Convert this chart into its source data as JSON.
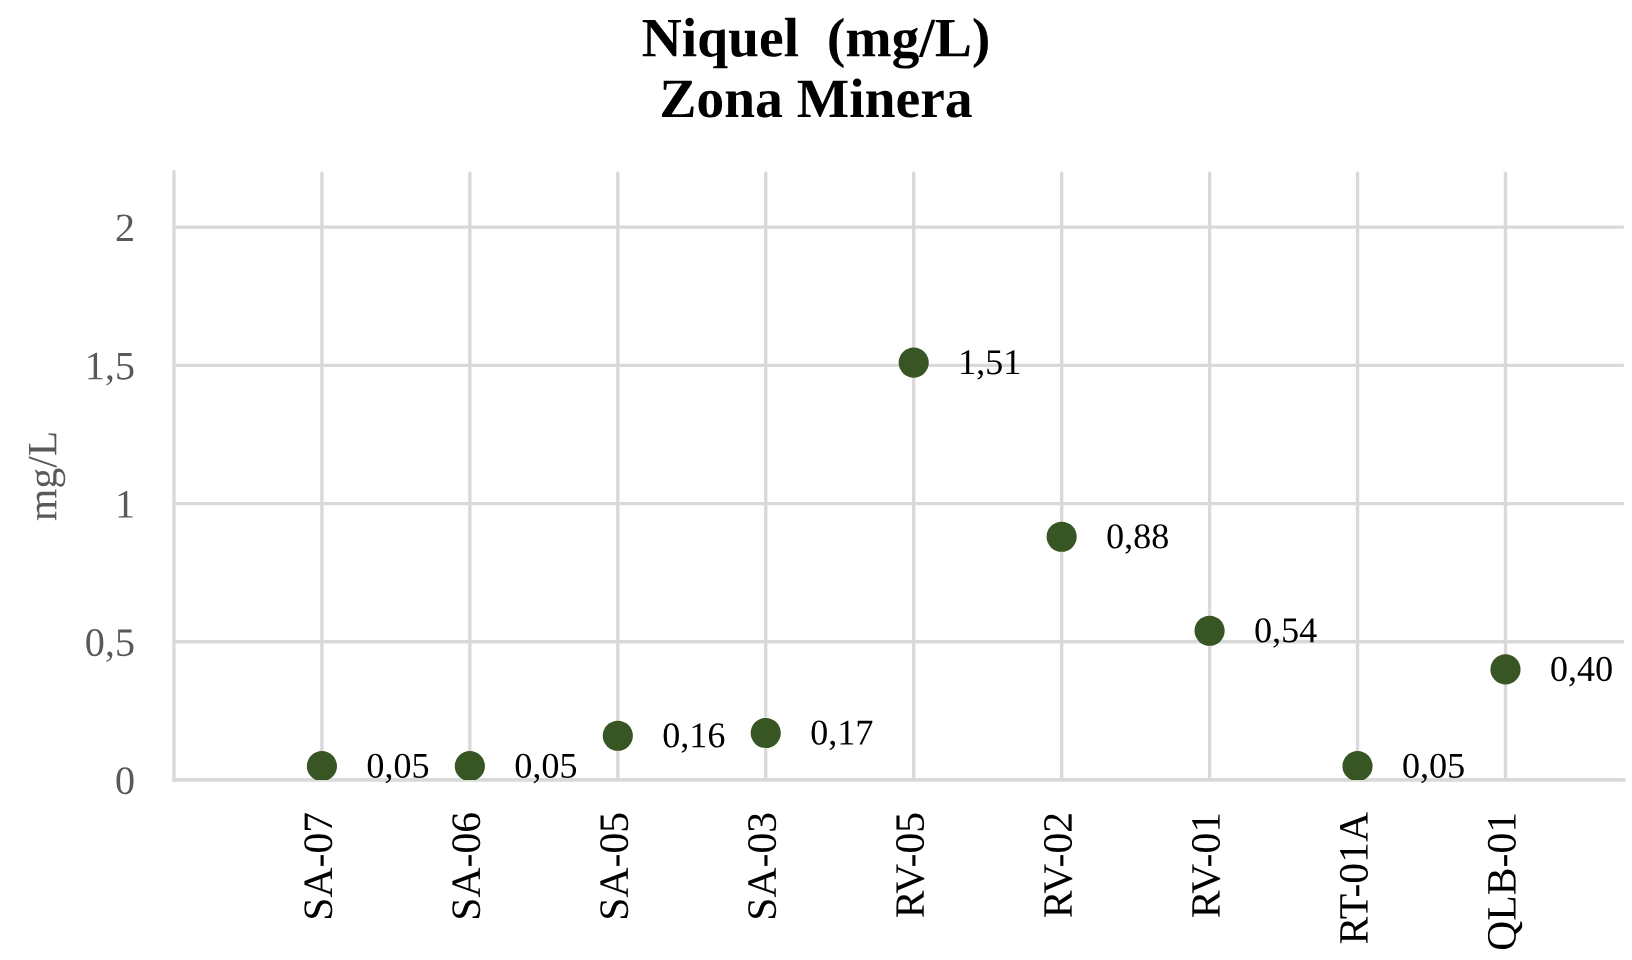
{
  "chart_data": {
    "type": "scatter",
    "title": "Niquel  (mg/L)",
    "subtitle": "Zona Minera",
    "ylabel": "mg/L",
    "categories": [
      "SA-07",
      "SA-06",
      "SA-05",
      "SA-03",
      "RV-05",
      "RV-02",
      "RV-01",
      "RT-01A",
      "QLB-01"
    ],
    "series": [
      {
        "color": "#375623",
        "values": [
          0.05,
          0.05,
          0.16,
          0.17,
          1.51,
          0.88,
          0.54,
          0.05,
          0.4
        ],
        "value_labels": [
          "0,05",
          "0,05",
          "0,16",
          "0,17",
          "1,51",
          "0,88",
          "0,54",
          "0,05",
          "0,40"
        ]
      }
    ],
    "ylim": [
      0,
      2.2
    ],
    "yticks": [
      0,
      {
        "value": 0.5,
        "label": "0,5"
      },
      1,
      {
        "value": 1.5,
        "label": "1,5"
      },
      2
    ],
    "grid": true,
    "marker": "circle"
  }
}
